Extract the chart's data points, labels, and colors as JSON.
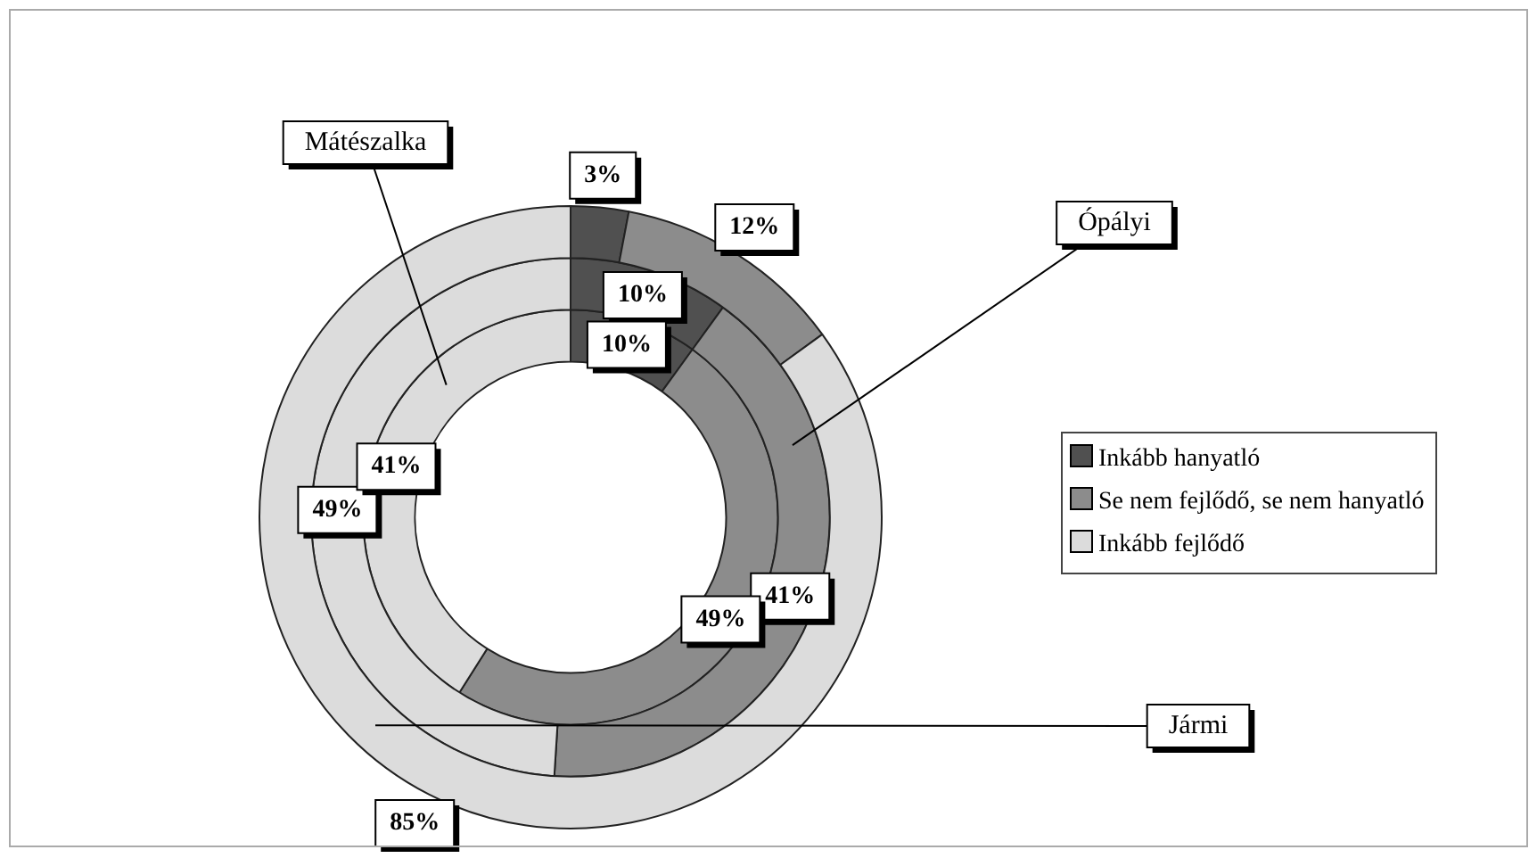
{
  "chart_data": {
    "type": "donut",
    "categories": [
      "Inkább hanyatló",
      "Se nem fejlődő, se nem hanyatló",
      "Inkább fejlődő"
    ],
    "colors": [
      "#505050",
      "#8c8c8c",
      "#dcdcdc"
    ],
    "legend": "right",
    "series": [
      {
        "name": "Jármi",
        "values": [
          3,
          12,
          85
        ],
        "value_labels": [
          "3%",
          "12%",
          "85%"
        ]
      },
      {
        "name": "Ópályi",
        "values": [
          10,
          41,
          49
        ],
        "value_labels": [
          "10%",
          "41%",
          "49%"
        ]
      },
      {
        "name": "Mátészalka",
        "values": [
          10,
          49,
          41
        ],
        "value_labels": [
          "10%",
          "49%",
          "41%"
        ]
      }
    ]
  }
}
